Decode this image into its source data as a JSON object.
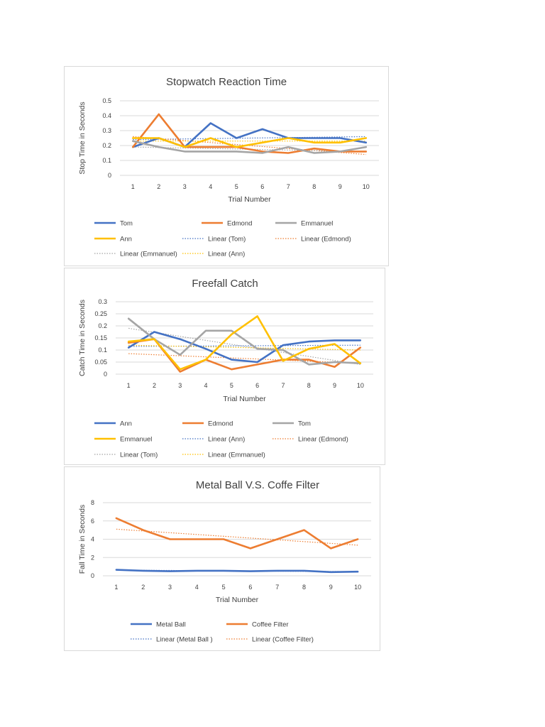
{
  "chart_data": [
    {
      "type": "line",
      "title": "Stopwatch Reaction Time",
      "xlabel": "Trial Number",
      "ylabel": "Stop Time in Seconds",
      "x": [
        1,
        2,
        3,
        4,
        5,
        6,
        7,
        8,
        9,
        10
      ],
      "xticks": [
        "1",
        "2",
        "3",
        "4",
        "5",
        "6",
        "7",
        "8",
        "9",
        "10"
      ],
      "yticks": [
        "0",
        "0.1",
        "0.2",
        "0.3",
        "0.4",
        "0.5"
      ],
      "ylim": [
        0,
        0.5
      ],
      "grid": true,
      "legend_position": "bottom",
      "series": [
        {
          "name": "Tom",
          "color": "#4472C4",
          "values": [
            0.19,
            0.25,
            0.19,
            0.35,
            0.25,
            0.31,
            0.25,
            0.25,
            0.25,
            0.22
          ]
        },
        {
          "name": "Edmond",
          "color": "#ED7D31",
          "values": [
            0.19,
            0.41,
            0.19,
            0.19,
            0.19,
            0.16,
            0.15,
            0.18,
            0.16,
            0.16
          ]
        },
        {
          "name": "Emmanuel",
          "color": "#A5A5A5",
          "values": [
            0.23,
            0.19,
            0.16,
            0.16,
            0.16,
            0.15,
            0.19,
            0.15,
            0.16,
            0.19
          ]
        },
        {
          "name": "Ann",
          "color": "#FFC000",
          "values": [
            0.25,
            0.25,
            0.19,
            0.25,
            0.19,
            0.22,
            0.25,
            0.22,
            0.22,
            0.25
          ]
        }
      ],
      "trendlines": [
        {
          "name": "Linear (Tom)",
          "color": "#4472C4",
          "start": 0.24,
          "end": 0.26
        },
        {
          "name": "Linear (Edmond)",
          "color": "#ED7D31",
          "start": 0.26,
          "end": 0.14
        },
        {
          "name": "Linear (Emmanuel)",
          "color": "#A5A5A5",
          "start": 0.19,
          "end": 0.16
        },
        {
          "name": "Linear (Ann)",
          "color": "#FFC000",
          "start": 0.23,
          "end": 0.23
        }
      ],
      "legend_order": [
        "Tom",
        "Edmond",
        "Emmanuel",
        "Ann",
        "Linear (Tom)",
        "Linear (Edmond)",
        "Linear (Emmanuel)",
        "Linear (Ann)"
      ]
    },
    {
      "type": "line",
      "title": "Freefall Catch",
      "xlabel": "Trial Number",
      "ylabel": "Catch Time in Seconds",
      "x": [
        1,
        2,
        3,
        4,
        5,
        6,
        7,
        8,
        9,
        10
      ],
      "xticks": [
        "1",
        "2",
        "3",
        "4",
        "5",
        "6",
        "7",
        "8",
        "9",
        "10"
      ],
      "yticks": [
        "0",
        "0.05",
        "0.1",
        "0.15",
        "0.2",
        "0.25",
        "0.3"
      ],
      "ylim": [
        0,
        0.3
      ],
      "grid": true,
      "legend_position": "bottom",
      "series": [
        {
          "name": "Ann",
          "color": "#4472C4",
          "values": [
            0.11,
            0.175,
            0.145,
            0.105,
            0.06,
            0.05,
            0.12,
            0.135,
            0.14,
            0.14
          ]
        },
        {
          "name": "Edmond",
          "color": "#ED7D31",
          "values": [
            0.13,
            0.145,
            0.01,
            0.06,
            0.02,
            0.04,
            0.06,
            0.06,
            0.03,
            0.11
          ]
        },
        {
          "name": "Tom",
          "color": "#A5A5A5",
          "values": [
            0.23,
            0.145,
            0.08,
            0.18,
            0.18,
            0.105,
            0.1,
            0.04,
            0.05,
            0.045
          ]
        },
        {
          "name": "Emmanuel",
          "color": "#FFC000",
          "values": [
            0.135,
            0.145,
            0.02,
            0.06,
            0.165,
            0.24,
            0.055,
            0.105,
            0.125,
            0.045
          ]
        }
      ],
      "trendlines": [
        {
          "name": "Linear (Ann)",
          "color": "#4472C4",
          "start": 0.115,
          "end": 0.12
        },
        {
          "name": "Linear (Edmond)",
          "color": "#ED7D31",
          "start": 0.085,
          "end": 0.045
        },
        {
          "name": "Linear (Tom)",
          "color": "#A5A5A5",
          "start": 0.19,
          "end": 0.04
        },
        {
          "name": "Linear (Emmanuel)",
          "color": "#FFC000",
          "start": 0.12,
          "end": 0.1
        }
      ],
      "legend_order": [
        "Ann",
        "Edmond",
        "Tom",
        "Emmanuel",
        "Linear (Ann)",
        "Linear (Edmond)",
        "Linear (Tom)",
        "Linear (Emmanuel)"
      ]
    },
    {
      "type": "line",
      "title": "Metal Ball V.S. Coffe Filter",
      "xlabel": "Trial Number",
      "ylabel": "Fall Time in Seconds",
      "x": [
        1,
        2,
        3,
        4,
        5,
        6,
        7,
        8,
        9,
        10
      ],
      "xticks": [
        "1",
        "2",
        "3",
        "4",
        "5",
        "6",
        "7",
        "8",
        "9",
        "10"
      ],
      "yticks": [
        "0",
        "2",
        "4",
        "6",
        "8"
      ],
      "ylim": [
        0,
        8
      ],
      "grid": true,
      "legend_position": "bottom",
      "series": [
        {
          "name": "Metal Ball",
          "color": "#4472C4",
          "values": [
            0.65,
            0.55,
            0.5,
            0.55,
            0.55,
            0.5,
            0.55,
            0.55,
            0.4,
            0.45
          ]
        },
        {
          "name": "Coffee Filter",
          "color": "#ED7D31",
          "values": [
            6.3,
            5.0,
            4.0,
            4.0,
            4.0,
            3.0,
            4.0,
            5.0,
            3.0,
            4.0
          ]
        }
      ],
      "trendlines": [
        {
          "name": "Linear (Metal Ball )",
          "color": "#4472C4",
          "start": 0.62,
          "end": 0.45
        },
        {
          "name": "Linear (Coffee Filter)",
          "color": "#ED7D31",
          "start": 5.1,
          "end": 3.35
        }
      ],
      "legend_order": [
        "Metal Ball",
        "Coffee Filter",
        "Linear (Metal Ball )",
        "Linear (Coffee Filter)"
      ]
    }
  ]
}
